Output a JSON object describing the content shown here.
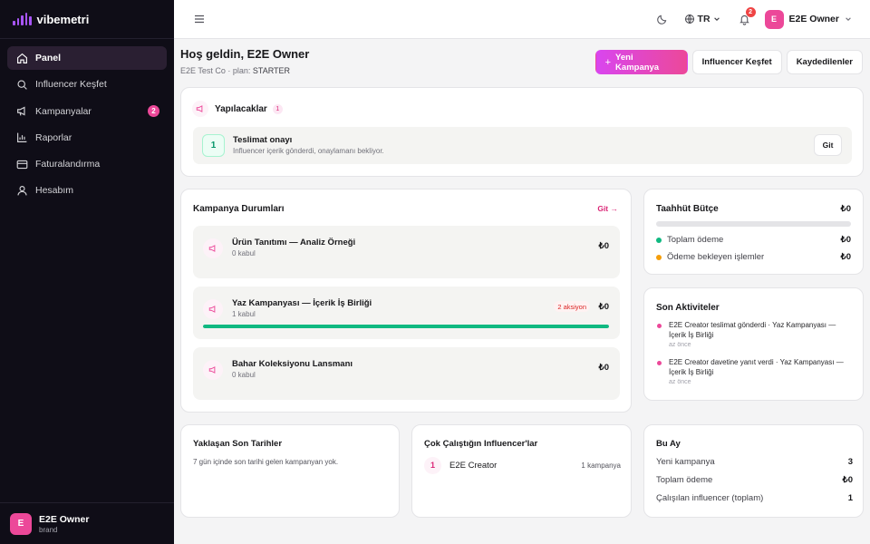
{
  "brand": {
    "name": "vibemetri"
  },
  "sidebar": {
    "items": [
      {
        "label": "Panel",
        "icon": "home-icon"
      },
      {
        "label": "Influencer Keşfet",
        "icon": "search-icon"
      },
      {
        "label": "Kampanyalar",
        "icon": "megaphone-icon",
        "badge": "2"
      },
      {
        "label": "Raporlar",
        "icon": "bar-chart-icon"
      },
      {
        "label": "Faturalandırma",
        "icon": "credit-card-icon"
      },
      {
        "label": "Hesabım",
        "icon": "user-icon"
      }
    ],
    "user": {
      "initial": "E",
      "name": "E2E Owner",
      "role": "brand"
    }
  },
  "topbar": {
    "language": "TR",
    "notifications": "2",
    "user": {
      "initial": "E",
      "name": "E2E Owner"
    }
  },
  "header": {
    "title": "Hoş geldin, E2E Owner",
    "subtitle_prefix": "E2E Test Co · plan: ",
    "plan": "STARTER",
    "new_campaign": "Yeni Kampanya",
    "discover": "Influencer Keşfet",
    "saved": "Kaydedilenler"
  },
  "todo": {
    "title": "Yapılacaklar",
    "count": "1",
    "item": {
      "number": "1",
      "title": "Teslimat onayı",
      "desc": "Influencer içerik gönderdi, onaylamanı bekliyor.",
      "action": "Git"
    }
  },
  "campaigns": {
    "title": "Kampanya Durumları",
    "link": "Git →",
    "items": [
      {
        "title": "Ürün Tanıtımı — Analiz Örneği",
        "sub": "0 kabul",
        "amount": "₺0"
      },
      {
        "title": "Yaz Kampanyası — İçerik İş Birliği",
        "sub": "1 kabul",
        "amount": "₺0",
        "badge": "2 aksiyon",
        "progress": 1.0
      },
      {
        "title": "Bahar Koleksiyonu Lansmanı",
        "sub": "0 kabul",
        "amount": "₺0"
      }
    ]
  },
  "budget": {
    "title": "Taahhüt Bütçe",
    "total": "₺0",
    "rows": [
      {
        "label": "Toplam ödeme",
        "value": "₺0",
        "color": "#10b981"
      },
      {
        "label": "Ödeme bekleyen işlemler",
        "value": "₺0",
        "color": "#f59e0b"
      }
    ]
  },
  "activities": {
    "title": "Son Aktiviteler",
    "items": [
      {
        "text": "E2E Creator teslimat gönderdi · Yaz Kampanyası — İçerik İş Birliği",
        "time": "az önce"
      },
      {
        "text": "E2E Creator davetine yanıt verdi · Yaz Kampanyası — İçerik İş Birliği",
        "time": "az önce"
      }
    ]
  },
  "deadlines": {
    "title": "Yaklaşan Son Tarihler",
    "empty": "7 gün içinde son tarihi gelen kampanyan yok."
  },
  "top_influencers": {
    "title": "Çok Çalıştığın Influencer'lar",
    "items": [
      {
        "rank": "1",
        "name": "E2E Creator",
        "count": "1 kampanya"
      }
    ]
  },
  "month": {
    "title": "Bu Ay",
    "rows": [
      {
        "label": "Yeni kampanya",
        "value": "3"
      },
      {
        "label": "Toplam ödeme",
        "value": "₺0"
      },
      {
        "label": "Çalışılan influencer (toplam)",
        "value": "1"
      }
    ]
  },
  "colors": {
    "accent": "#ec4899",
    "sidebar_bg": "#0f0d17",
    "success": "#10b981"
  }
}
